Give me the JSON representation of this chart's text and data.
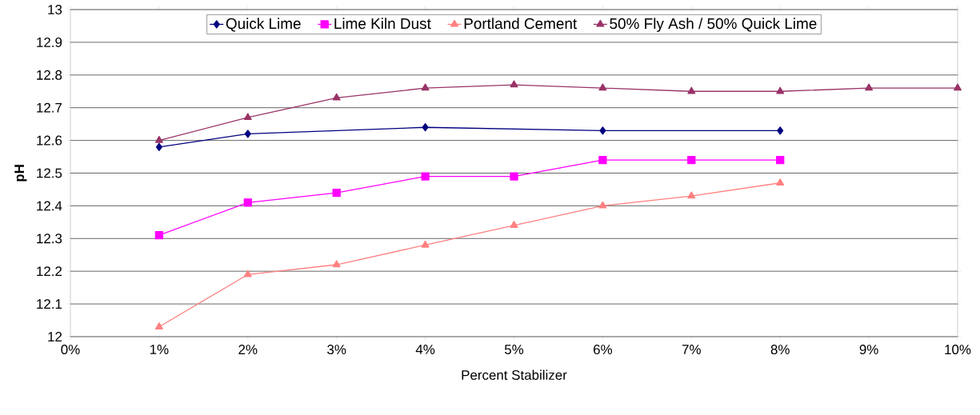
{
  "chart_data": {
    "type": "line",
    "xlabel": "Percent Stabilizer",
    "ylabel": "pH",
    "xlim": [
      0,
      10
    ],
    "xticks": [
      {
        "value": 0,
        "label": "0%"
      },
      {
        "value": 1,
        "label": "1%"
      },
      {
        "value": 2,
        "label": "2%"
      },
      {
        "value": 3,
        "label": "3%"
      },
      {
        "value": 4,
        "label": "4%"
      },
      {
        "value": 5,
        "label": "5%"
      },
      {
        "value": 6,
        "label": "6%"
      },
      {
        "value": 7,
        "label": "7%"
      },
      {
        "value": 8,
        "label": "8%"
      },
      {
        "value": 9,
        "label": "9%"
      },
      {
        "value": 10,
        "label": "10%"
      }
    ],
    "ylim": [
      12,
      13
    ],
    "yticks": [
      12,
      12.1,
      12.2,
      12.3,
      12.4,
      12.5,
      12.6,
      12.7,
      12.8,
      12.9,
      13
    ],
    "grid": "y",
    "legend": "top",
    "line_style": "solid",
    "series": [
      {
        "name": "Quick Lime",
        "color": "#000080",
        "marker": "diamond",
        "x": [
          1,
          2,
          4,
          6,
          8
        ],
        "values": [
          12.58,
          12.62,
          12.64,
          12.63,
          12.63
        ]
      },
      {
        "name": "Lime Kiln Dust",
        "color": "#ff00ff",
        "marker": "square",
        "x": [
          1,
          2,
          3,
          4,
          5,
          6,
          7,
          8
        ],
        "values": [
          12.31,
          12.41,
          12.44,
          12.49,
          12.49,
          12.54,
          12.54,
          12.54
        ]
      },
      {
        "name": "Portland Cement",
        "color": "#ff8080",
        "marker": "triangle",
        "x": [
          1,
          2,
          3,
          4,
          5,
          6,
          7,
          8
        ],
        "values": [
          12.03,
          12.19,
          12.22,
          12.28,
          12.34,
          12.4,
          12.43,
          12.47
        ]
      },
      {
        "name": "50% Fly Ash / 50% Quick Lime",
        "color": "#993366",
        "marker": "triangle",
        "x": [
          1,
          2,
          3,
          4,
          5,
          6,
          7,
          8,
          9,
          10
        ],
        "values": [
          12.6,
          12.67,
          12.73,
          12.76,
          12.77,
          12.76,
          12.75,
          12.75,
          12.76,
          12.76
        ]
      }
    ]
  }
}
